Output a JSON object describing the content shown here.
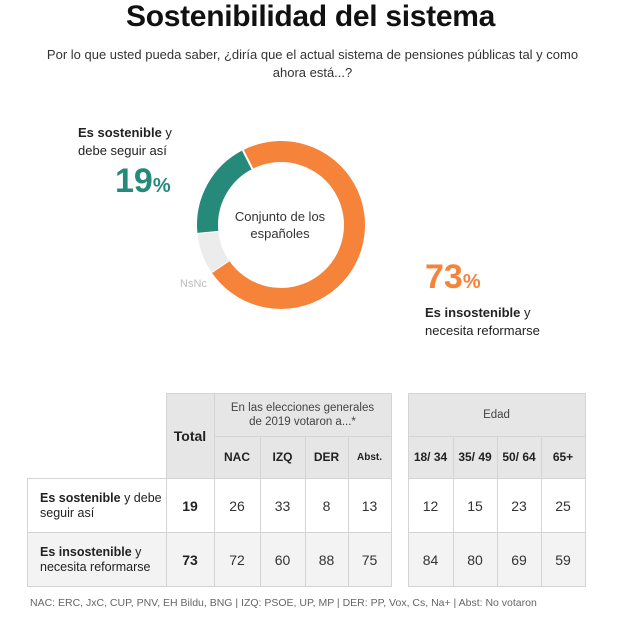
{
  "title": "Sostenibilidad del sistema",
  "subtitle": "Por lo que usted pueda saber, ¿diría que el actual sistema de pensiones públicas tal y como ahora está...?",
  "donut_center": "Conjunto de los españoles",
  "labels": {
    "sostenible_bold": "Es sostenible",
    "sostenible_rest": " y debe seguir así",
    "sostenible_value": "19",
    "pct_sign": "%",
    "insostenible_bold": "Es insostenible",
    "insostenible_rest": " y necesita reformarse",
    "insostenible_value": "73",
    "nsnc": "NsNc"
  },
  "chart_data": {
    "type": "pie",
    "donut": true,
    "slices": [
      {
        "name": "Es insostenible y necesita reformarse",
        "value": 73,
        "color": "#f5833a"
      },
      {
        "name": "NsNc",
        "value": 8,
        "color": "#ececec"
      },
      {
        "name": "Es sostenible y debe seguir así",
        "value": 19,
        "color": "#268a7b"
      }
    ]
  },
  "table": {
    "total": "Total",
    "group1": "En las elecciones generales de 2019 votaron a...*",
    "group2": "Edad",
    "cols": [
      "NAC",
      "IZQ",
      "DER",
      "Abst.",
      "18/ 34",
      "35/ 49",
      "50/ 64",
      "65+"
    ],
    "rows": [
      {
        "bold": "Es sostenible",
        "rest": " y debe seguir así",
        "total": "19",
        "values": [
          "26",
          "33",
          "8",
          "13",
          "12",
          "15",
          "23",
          "25"
        ]
      },
      {
        "bold": "Es insostenible",
        "rest": " y necesita reformarse",
        "total": "73",
        "values": [
          "72",
          "60",
          "88",
          "75",
          "84",
          "80",
          "69",
          "59"
        ]
      }
    ]
  },
  "footnote": "NAC: ERC, JxC, CUP, PNV, EH Bildu, BNG | IZQ: PSOE, UP, MP | DER: PP, Vox, Cs, Na+ | Abst: No votaron"
}
